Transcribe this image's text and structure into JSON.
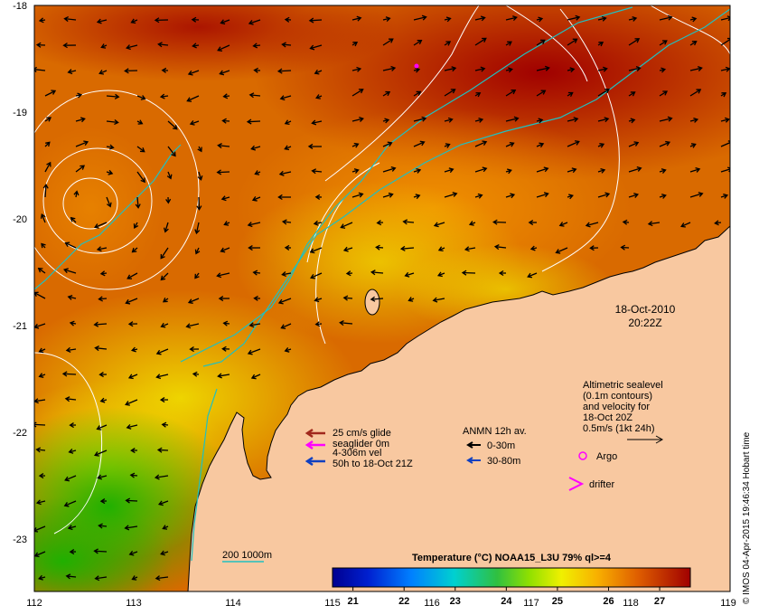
{
  "map": {
    "lon_ticks": [
      "112",
      "113",
      "114",
      "115",
      "116",
      "117",
      "118",
      "119"
    ],
    "lat_ticks": [
      "-18",
      "-19",
      "-20",
      "-21",
      "-22",
      "-23"
    ],
    "lon_range": [
      112,
      119
    ],
    "lat_range": [
      -23.55,
      -18
    ]
  },
  "timestamp": {
    "date": "18-Oct-2010",
    "time": "20:22Z"
  },
  "altimetry": {
    "lines": [
      "Altimetric sealevel",
      "(0.1m contours)",
      "and velocity for",
      "18-Oct 20Z",
      "0.5m/s (1kt 24h)"
    ]
  },
  "glider_legend": {
    "lines": [
      "25 cm/s glide",
      "seaglider 0m",
      "4-306m vel",
      "50h to 18-Oct 21Z"
    ],
    "colors": [
      "#a0281c",
      "#ff00ff",
      "#ff00ff",
      "#1040c0"
    ]
  },
  "anmn_legend": {
    "title": "ANMN 12h av.",
    "items": [
      {
        "label": "0-30m",
        "color": "#000000"
      },
      {
        "label": "30-80m",
        "color": "#1040c0"
      }
    ]
  },
  "symbols": {
    "argo": "Argo",
    "drifter": "drifter",
    "argo_color": "#ff00ff"
  },
  "isobath": {
    "label": "200  1000m",
    "color": "#20c0c0"
  },
  "colorbar": {
    "title": "Temperature (°C) NOAA15_L3U 79% ql>=4",
    "ticks": [
      "21",
      "22",
      "23",
      "24",
      "25",
      "26",
      "27"
    ],
    "range": [
      20.6,
      27.6
    ]
  },
  "credit": "© IMOS 04-Apr-2015 19:46:34 Hobart time",
  "colors": {
    "land": "#f8c8a0",
    "warm": "#a00000",
    "mid": "#f09000",
    "cool": "#20c000"
  }
}
